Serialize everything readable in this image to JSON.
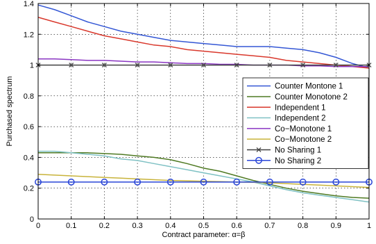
{
  "chart_data": {
    "type": "line",
    "title": "",
    "xlabel": "Contract parameter: α=β",
    "ylabel": "Purchased spectrum",
    "xlim": [
      0,
      1
    ],
    "ylim": [
      0,
      1.4
    ],
    "x_ticks": [
      "0",
      "0.1",
      "0.2",
      "0.3",
      "0.4",
      "0.5",
      "0.6",
      "0.7",
      "0.8",
      "0.9",
      "1"
    ],
    "y_ticks": [
      "0",
      "0.2",
      "0.4",
      "0.6",
      "0.8",
      "1",
      "1.2",
      "1.4"
    ],
    "grid": true,
    "legend_position": "right",
    "x": [
      0,
      0.05,
      0.1,
      0.15,
      0.2,
      0.25,
      0.3,
      0.35,
      0.4,
      0.45,
      0.5,
      0.55,
      0.6,
      0.65,
      0.7,
      0.75,
      0.8,
      0.85,
      0.9,
      0.95,
      1
    ],
    "series": [
      {
        "name": "Counter Montone 1",
        "color": "#3457d5",
        "marker": "none",
        "values": [
          1.39,
          1.36,
          1.32,
          1.28,
          1.25,
          1.22,
          1.2,
          1.18,
          1.16,
          1.15,
          1.14,
          1.13,
          1.12,
          1.12,
          1.12,
          1.11,
          1.1,
          1.08,
          1.05,
          1.01,
          0.98
        ]
      },
      {
        "name": "Counter Monotone 2",
        "color": "#4f7a23",
        "marker": "none",
        "values": [
          0.43,
          0.43,
          0.43,
          0.43,
          0.425,
          0.42,
          0.41,
          0.4,
          0.385,
          0.36,
          0.33,
          0.31,
          0.28,
          0.25,
          0.225,
          0.2,
          0.18,
          0.165,
          0.15,
          0.14,
          0.135
        ]
      },
      {
        "name": "Independent 1",
        "color": "#d9382c",
        "marker": "none",
        "values": [
          1.31,
          1.28,
          1.25,
          1.22,
          1.19,
          1.17,
          1.15,
          1.13,
          1.12,
          1.1,
          1.09,
          1.08,
          1.07,
          1.06,
          1.05,
          1.03,
          1.02,
          1.01,
          1.0,
          0.99,
          0.98
        ]
      },
      {
        "name": "Independent 2",
        "color": "#7fc1c4",
        "marker": "none",
        "values": [
          0.44,
          0.44,
          0.43,
          0.42,
          0.41,
          0.39,
          0.38,
          0.36,
          0.34,
          0.32,
          0.3,
          0.28,
          0.26,
          0.24,
          0.215,
          0.19,
          0.17,
          0.155,
          0.14,
          0.125,
          0.11
        ]
      },
      {
        "name": "Co−Monotone 1",
        "color": "#8a35c2",
        "marker": "none",
        "values": [
          1.04,
          1.04,
          1.035,
          1.03,
          1.03,
          1.025,
          1.02,
          1.02,
          1.015,
          1.01,
          1.01,
          1.005,
          1.005,
          1.0,
          1.0,
          1.0,
          0.995,
          0.995,
          0.99,
          0.99,
          0.99
        ]
      },
      {
        "name": "Co−Monotone 2",
        "color": "#c8b33a",
        "marker": "none",
        "values": [
          0.29,
          0.285,
          0.28,
          0.275,
          0.27,
          0.265,
          0.26,
          0.255,
          0.25,
          0.248,
          0.245,
          0.243,
          0.24,
          0.238,
          0.235,
          0.23,
          0.225,
          0.22,
          0.215,
          0.21,
          0.205
        ]
      },
      {
        "name": "No Sharing 1",
        "color": "#404040",
        "marker": "x",
        "values": [
          1.0,
          1.0,
          1.0,
          1.0,
          1.0,
          1.0,
          1.0,
          1.0,
          1.0,
          1.0,
          1.0,
          1.0,
          1.0,
          1.0,
          1.0,
          1.0,
          1.0,
          1.0,
          1.0,
          1.0,
          1.0
        ]
      },
      {
        "name": "No Sharing 2",
        "color": "#2a46d8",
        "marker": "o",
        "values": [
          0.24,
          0.24,
          0.24,
          0.24,
          0.24,
          0.24,
          0.24,
          0.24,
          0.24,
          0.24,
          0.24,
          0.24,
          0.24,
          0.24,
          0.24,
          0.24,
          0.24,
          0.24,
          0.24,
          0.24,
          0.24
        ]
      }
    ]
  }
}
